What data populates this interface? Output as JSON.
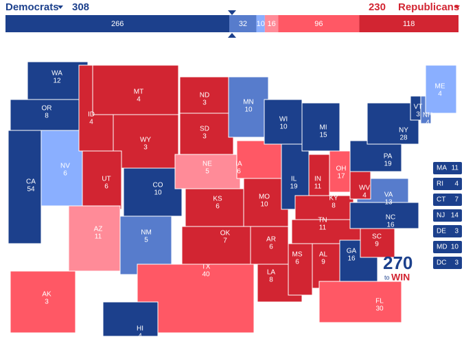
{
  "header": {
    "left_label": "Democrats",
    "left_total": 308,
    "right_total": 230,
    "right_label": "Republicans"
  },
  "categories": [
    {
      "color": "#1c408c"
    },
    {
      "color": "#577ccc"
    },
    {
      "color": "#8aafff"
    },
    {
      "color": "#ff8b98"
    },
    {
      "color": "#ff5865"
    },
    {
      "color": "#d22532"
    }
  ],
  "bar": [
    {
      "value": 266,
      "category": 0
    },
    {
      "value": 32,
      "category": 1
    },
    {
      "value": 10,
      "category": 2
    },
    {
      "value": 16,
      "category": 3
    },
    {
      "value": 96,
      "category": 4
    },
    {
      "value": 118,
      "category": 5
    }
  ],
  "states": [
    {
      "abbr": "WA",
      "votes": 12,
      "category": 0
    },
    {
      "abbr": "OR",
      "votes": 8,
      "category": 0
    },
    {
      "abbr": "NV",
      "votes": 6,
      "category": 2
    },
    {
      "abbr": "CA",
      "votes": 54,
      "category": 0
    },
    {
      "abbr": "ID",
      "votes": 4,
      "category": 5
    },
    {
      "abbr": "MT",
      "votes": 4,
      "category": 5
    },
    {
      "abbr": "WY",
      "votes": 3,
      "category": 5
    },
    {
      "abbr": "UT",
      "votes": 6,
      "category": 5
    },
    {
      "abbr": "CO",
      "votes": 10,
      "category": 0
    },
    {
      "abbr": "AZ",
      "votes": 11,
      "category": 3
    },
    {
      "abbr": "NM",
      "votes": 5,
      "category": 1
    },
    {
      "abbr": "ND",
      "votes": 3,
      "category": 5
    },
    {
      "abbr": "SD",
      "votes": 3,
      "category": 5
    },
    {
      "abbr": "NE",
      "votes": 5,
      "category": 3
    },
    {
      "abbr": "KS",
      "votes": 6,
      "category": 5
    },
    {
      "abbr": "OK",
      "votes": 7,
      "category": 5
    },
    {
      "abbr": "TX",
      "votes": 40,
      "category": 4
    },
    {
      "abbr": "MN",
      "votes": 10,
      "category": 1
    },
    {
      "abbr": "IA",
      "votes": 6,
      "category": 4
    },
    {
      "abbr": "MO",
      "votes": 10,
      "category": 5
    },
    {
      "abbr": "AR",
      "votes": 6,
      "category": 5
    },
    {
      "abbr": "LA",
      "votes": 8,
      "category": 5
    },
    {
      "abbr": "WI",
      "votes": 10,
      "category": 0
    },
    {
      "abbr": "IL",
      "votes": 19,
      "category": 0
    },
    {
      "abbr": "MI",
      "votes": 15,
      "category": 0
    },
    {
      "abbr": "IN",
      "votes": 11,
      "category": 5
    },
    {
      "abbr": "OH",
      "votes": 17,
      "category": 4
    },
    {
      "abbr": "KY",
      "votes": 8,
      "category": 5
    },
    {
      "abbr": "TN",
      "votes": 11,
      "category": 5
    },
    {
      "abbr": "MS",
      "votes": 6,
      "category": 5
    },
    {
      "abbr": "AL",
      "votes": 9,
      "category": 5
    },
    {
      "abbr": "GA",
      "votes": 16,
      "category": 0
    },
    {
      "abbr": "FL",
      "votes": 30,
      "category": 4
    },
    {
      "abbr": "SC",
      "votes": 9,
      "category": 5
    },
    {
      "abbr": "NC",
      "votes": 16,
      "category": 0
    },
    {
      "abbr": "VA",
      "votes": 13,
      "category": 1
    },
    {
      "abbr": "WV",
      "votes": 4,
      "category": 5
    },
    {
      "abbr": "PA",
      "votes": 19,
      "category": 0
    },
    {
      "abbr": "NY",
      "votes": 28,
      "category": 0
    },
    {
      "abbr": "VT",
      "votes": 3,
      "category": 0
    },
    {
      "abbr": "NH",
      "votes": 4,
      "category": 1
    },
    {
      "abbr": "ME",
      "votes": 4,
      "category": 2
    },
    {
      "abbr": "AK",
      "votes": 3,
      "category": 4
    },
    {
      "abbr": "HI",
      "votes": 4,
      "category": 0
    }
  ],
  "small_states": [
    {
      "abbr": "MA",
      "votes": 11,
      "category": 0
    },
    {
      "abbr": "RI",
      "votes": 4,
      "category": 0
    },
    {
      "abbr": "CT",
      "votes": 7,
      "category": 0
    },
    {
      "abbr": "NJ",
      "votes": 14,
      "category": 0
    },
    {
      "abbr": "DE",
      "votes": 3,
      "category": 0
    },
    {
      "abbr": "MD",
      "votes": 10,
      "category": 0
    },
    {
      "abbr": "DC",
      "votes": 3,
      "category": 0
    }
  ],
  "logo": {
    "number": "270",
    "to": "to",
    "word": "WIN"
  }
}
